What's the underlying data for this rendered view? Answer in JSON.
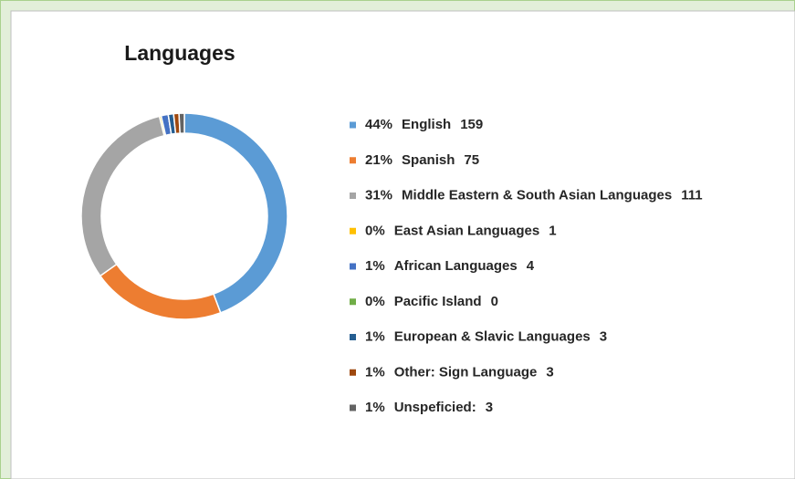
{
  "chart_data": {
    "type": "donut",
    "title": "Languages",
    "categories": [
      "English",
      "Spanish",
      "Middle Eastern & South Asian Languages",
      "East Asian Languages",
      "African Languages",
      "Pacific Island",
      "European & Slavic Languages",
      "Other: Sign Language",
      "Unspeficied:"
    ],
    "values": [
      159,
      75,
      111,
      1,
      4,
      0,
      3,
      3,
      3
    ],
    "percent_labels": [
      "44%",
      "21%",
      "31%",
      "0%",
      "1%",
      "0%",
      "1%",
      "1%",
      "1%"
    ],
    "colors": [
      "#5b9bd5",
      "#ed7d31",
      "#a5a5a5",
      "#ffc000",
      "#4472c4",
      "#70ad47",
      "#255e91",
      "#9e480e",
      "#636363"
    ],
    "legend": "right"
  }
}
